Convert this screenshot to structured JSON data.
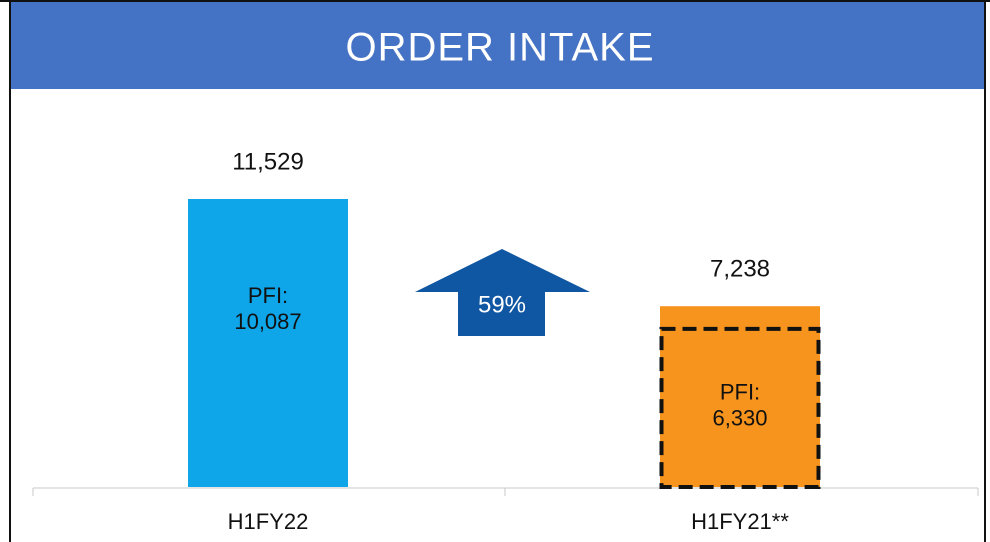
{
  "chart_data": {
    "type": "bar",
    "title": "ORDER INTAKE",
    "categories": [
      "H1FY22",
      "H1FY21**"
    ],
    "values": [
      11529,
      7238
    ],
    "value_labels": [
      "11,529",
      "7,238"
    ],
    "colors": [
      "#0ea5e9",
      "#f7941d"
    ],
    "inner_label": "PFI:",
    "inner_values": [
      10087,
      6330
    ],
    "inner_value_labels": [
      "10,087",
      "6,330"
    ],
    "inner_outline": [
      false,
      true
    ],
    "annotation": {
      "label": "59%",
      "color": "#0f56a3"
    }
  }
}
